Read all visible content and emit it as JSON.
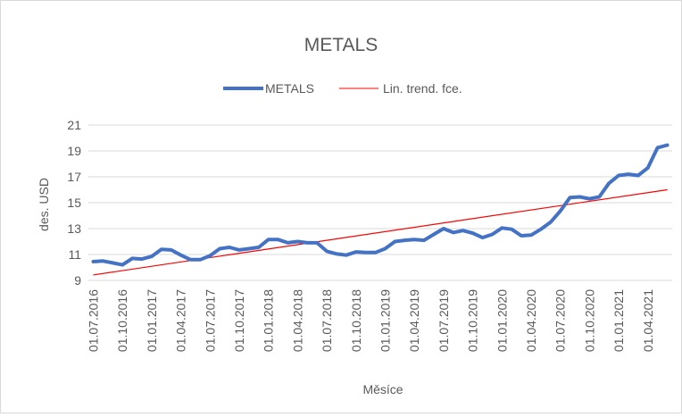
{
  "chart_data": {
    "type": "line",
    "title": "METALS",
    "xlabel": "Měsíce",
    "ylabel": "des. USD",
    "ylim": [
      9,
      21
    ],
    "yticks": [
      9,
      11,
      13,
      15,
      17,
      19,
      21
    ],
    "grid": true,
    "legend_position": "top",
    "x": [
      "01.07.2016",
      "01.08.2016",
      "01.09.2016",
      "01.10.2016",
      "01.11.2016",
      "01.12.2016",
      "01.01.2017",
      "01.02.2017",
      "01.03.2017",
      "01.04.2017",
      "01.05.2017",
      "01.06.2017",
      "01.07.2017",
      "01.08.2017",
      "01.09.2017",
      "01.10.2017",
      "01.11.2017",
      "01.12.2017",
      "01.01.2018",
      "01.02.2018",
      "01.03.2018",
      "01.04.2018",
      "01.05.2018",
      "01.06.2018",
      "01.07.2018",
      "01.08.2018",
      "01.09.2018",
      "01.10.2018",
      "01.11.2018",
      "01.12.2018",
      "01.01.2019",
      "01.02.2019",
      "01.03.2019",
      "01.04.2019",
      "01.05.2019",
      "01.06.2019",
      "01.07.2019",
      "01.08.2019",
      "01.09.2019",
      "01.10.2019",
      "01.11.2019",
      "01.12.2019",
      "01.01.2020",
      "01.02.2020",
      "01.03.2020",
      "01.04.2020",
      "01.05.2020",
      "01.06.2020",
      "01.07.2020",
      "01.08.2020",
      "01.09.2020",
      "01.10.2020",
      "01.11.2020",
      "01.12.2020",
      "01.01.2021",
      "01.02.2021",
      "01.03.2021",
      "01.04.2021",
      "01.05.2021",
      "01.06.2021"
    ],
    "xtick_labels": [
      "01.07.2016",
      "01.10.2016",
      "01.01.2017",
      "01.04.2017",
      "01.07.2017",
      "01.10.2017",
      "01.01.2018",
      "01.04.2018",
      "01.07.2018",
      "01.10.2018",
      "01.01.2019",
      "01.04.2019",
      "01.07.2019",
      "01.10.2019",
      "01.01.2020",
      "01.04.2020",
      "01.07.2020",
      "01.10.2020",
      "01.01.2021",
      "01.04.2021"
    ],
    "series": [
      {
        "name": "METALS",
        "color": "#4472c4",
        "values": [
          10.45,
          10.5,
          10.35,
          10.2,
          10.7,
          10.65,
          10.85,
          11.4,
          11.35,
          10.95,
          10.6,
          10.6,
          10.9,
          11.45,
          11.55,
          11.35,
          11.45,
          11.55,
          12.15,
          12.15,
          11.9,
          12.0,
          11.9,
          11.9,
          11.25,
          11.05,
          10.95,
          11.2,
          11.15,
          11.15,
          11.45,
          12.0,
          12.1,
          12.15,
          12.1,
          12.55,
          13.0,
          12.7,
          12.85,
          12.65,
          12.3,
          12.55,
          13.05,
          12.95,
          12.45,
          12.5,
          12.95,
          13.5,
          14.35,
          15.4,
          15.45,
          15.3,
          15.45,
          16.5,
          17.1,
          17.2,
          17.1,
          17.7,
          19.25,
          19.45
        ]
      },
      {
        "name": "Lin. trend. fce.",
        "color": "#ff0000",
        "type": "trendline",
        "start": 9.42,
        "end": 16.0
      }
    ]
  }
}
